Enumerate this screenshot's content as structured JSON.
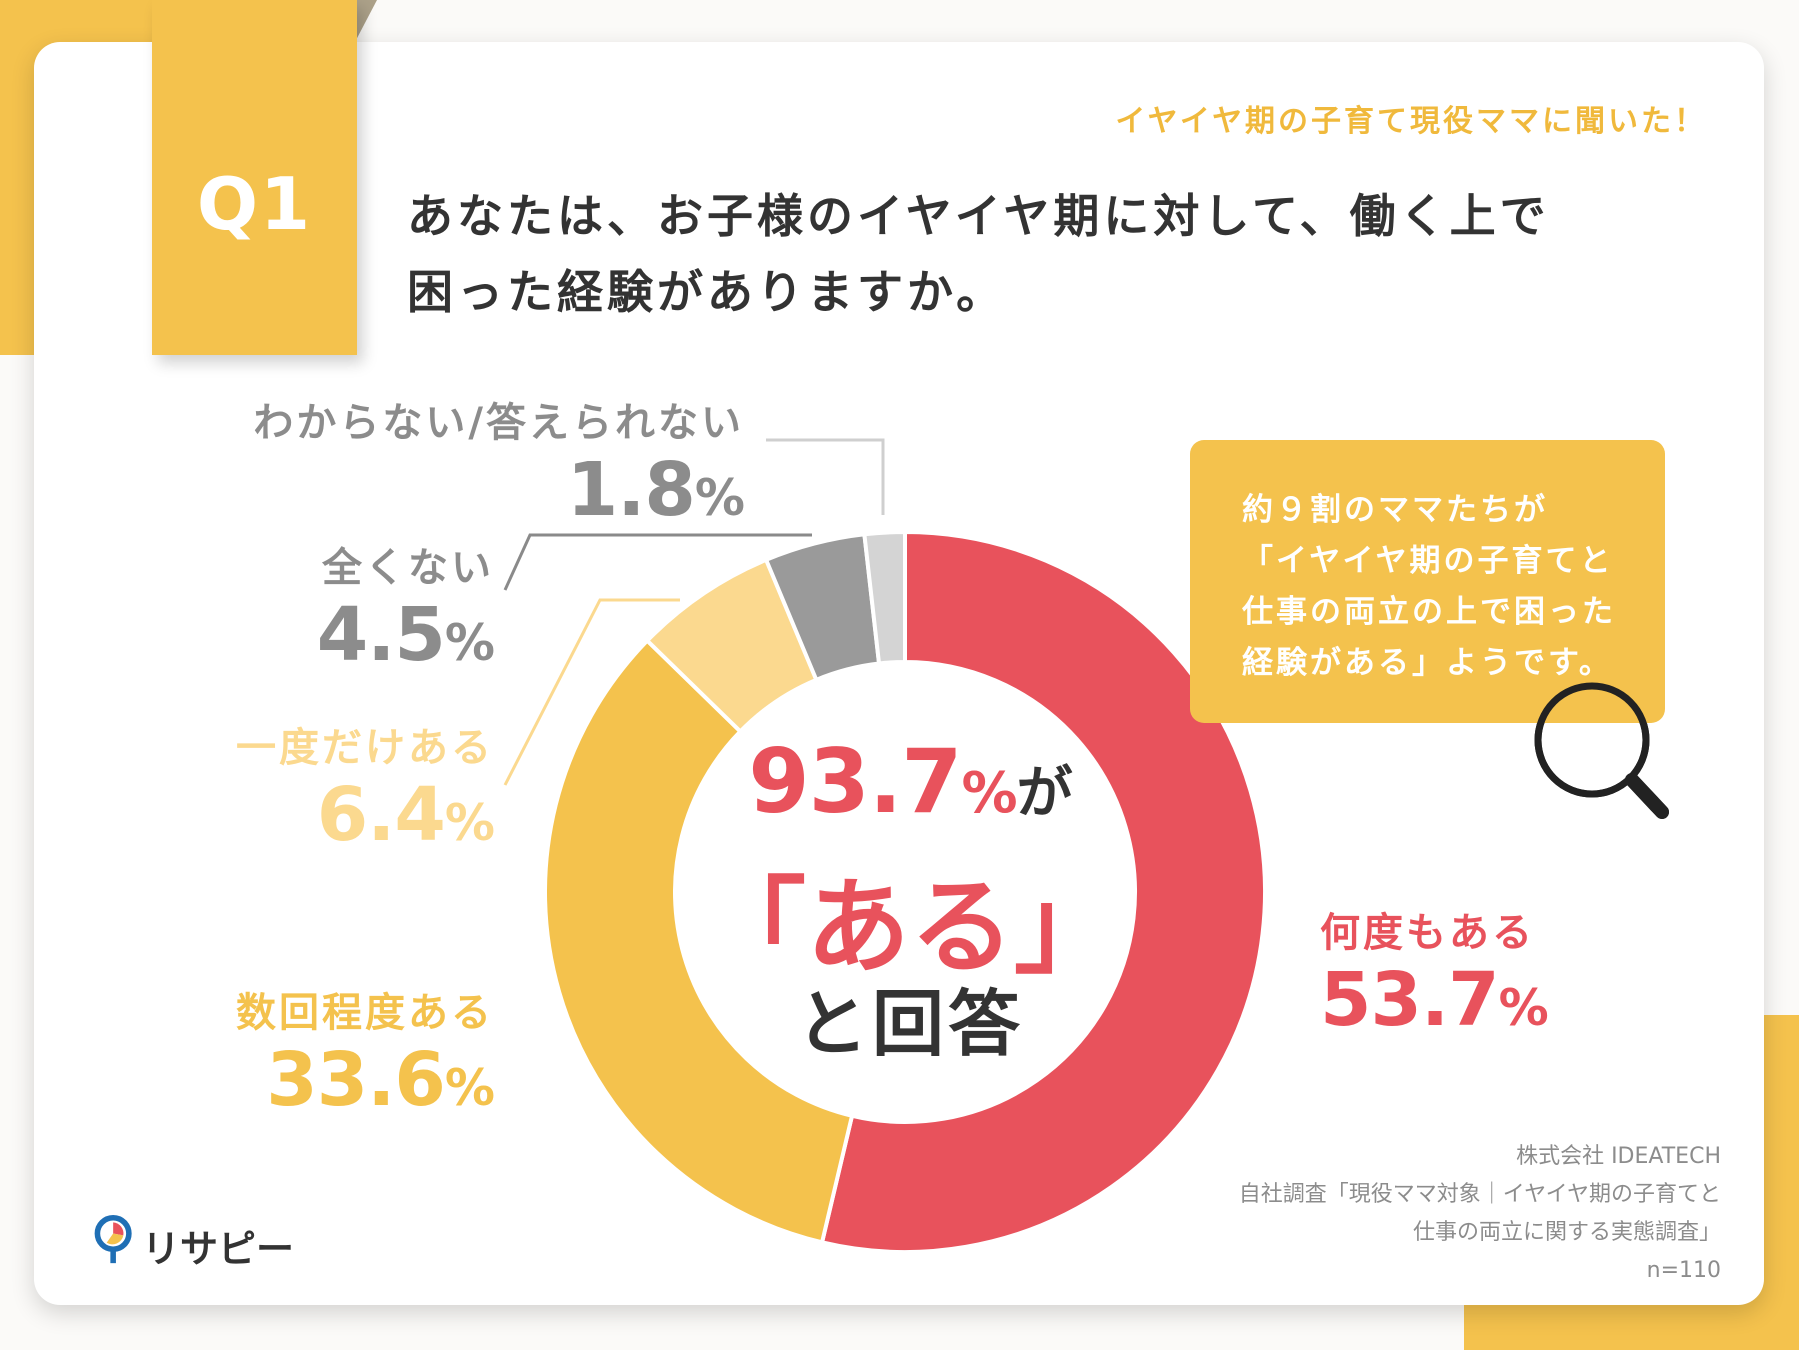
{
  "header": {
    "badge": "Q1",
    "subtitle": "イヤイヤ期の子育て現役ママに聞いた！",
    "question_line1": "あなたは、お子様のイヤイヤ期に対して、働く上で",
    "question_line2": "困った経験がありますか。"
  },
  "chart_data": {
    "type": "pie",
    "variant": "donut",
    "title": "あなたは、お子様のイヤイヤ期に対して、働く上で困った経験がありますか。",
    "slices": [
      {
        "label": "何度もある",
        "value": 53.7,
        "display": "53.7",
        "unit": "%",
        "color": "#e8525c"
      },
      {
        "label": "数回程度ある",
        "value": 33.6,
        "display": "33.6",
        "unit": "%",
        "color": "#f4c24d"
      },
      {
        "label": "一度だけある",
        "value": 6.4,
        "display": "6.4",
        "unit": "%",
        "color": "#fbd98f"
      },
      {
        "label": "全くない",
        "value": 4.5,
        "display": "4.5",
        "unit": "%",
        "color": "#9a9a9a"
      },
      {
        "label": "わからない/答えられない",
        "value": 1.8,
        "display": "1.8",
        "unit": "%",
        "color": "#d4d4d4"
      }
    ],
    "center_text": {
      "value": "93.7",
      "unit": "%",
      "particle": "が",
      "answer": "「ある」",
      "suffix": "と回答"
    }
  },
  "callout": {
    "lines": [
      "約９割のママたちが",
      "「イヤイヤ期の子育てと",
      "仕事の両立の上で困った",
      "経験がある」ようです。"
    ]
  },
  "source": {
    "company": "株式会社 IDEATECH",
    "survey_line1": "自社調査「現役ママ対象｜イヤイヤ期の子育てと",
    "survey_line2": "仕事の両立に関する実態調査」",
    "n": "n=110"
  },
  "brand": {
    "name": "リサピー",
    "accent": "#f4c24d",
    "red": "#e8525c"
  },
  "icons": [
    "magnifier-icon",
    "brand-logo-icon"
  ]
}
